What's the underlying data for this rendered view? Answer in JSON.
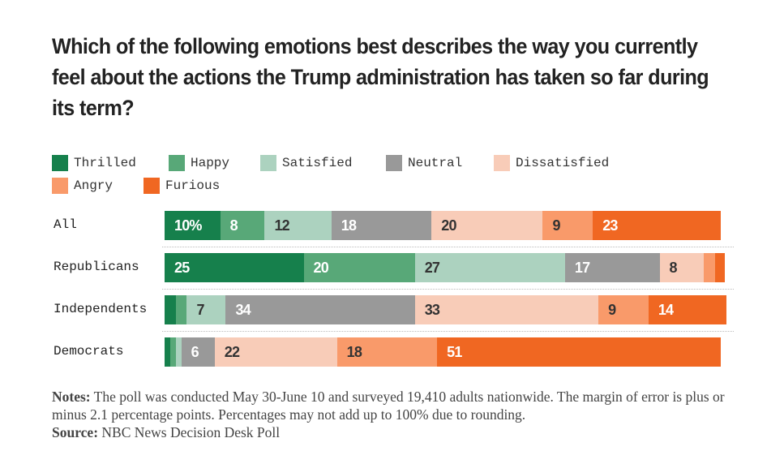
{
  "chart_data": {
    "type": "bar",
    "stacked": true,
    "orientation": "horizontal",
    "title": "Which of the following emotions best describes the way you currently feel about the actions the Trump administration has taken so far during its term?",
    "categories": [
      "All",
      "Republicans",
      "Independents",
      "Democrats"
    ],
    "series": [
      {
        "name": "Thrilled",
        "color": "#16804c",
        "text": "#fff",
        "values": [
          10,
          25,
          2,
          1
        ],
        "labels": [
          "10%",
          "25",
          "",
          ""
        ]
      },
      {
        "name": "Happy",
        "color": "#58a878",
        "text": "#fff",
        "values": [
          8,
          20,
          2,
          1
        ],
        "labels": [
          "8",
          "20",
          "",
          ""
        ]
      },
      {
        "name": "Satisfied",
        "color": "#acd2bf",
        "text": "#333",
        "values": [
          12,
          27,
          7,
          1
        ],
        "labels": [
          "12",
          "27",
          "7",
          ""
        ]
      },
      {
        "name": "Neutral",
        "color": "#999999",
        "text": "#fff",
        "values": [
          18,
          17,
          34,
          6
        ],
        "labels": [
          "18",
          "17",
          "34",
          "6"
        ]
      },
      {
        "name": "Dissatisfied",
        "color": "#f8ccb8",
        "text": "#333",
        "values": [
          20,
          8,
          33,
          22
        ],
        "labels": [
          "20",
          "8",
          "33",
          "22"
        ]
      },
      {
        "name": "Angry",
        "color": "#f99a6a",
        "text": "#333",
        "values": [
          9,
          2,
          9,
          18
        ],
        "labels": [
          "9",
          "",
          "9",
          "18"
        ]
      },
      {
        "name": "Furious",
        "color": "#f06722",
        "text": "#fff",
        "values": [
          23,
          1,
          14,
          51
        ],
        "labels": [
          "23",
          "",
          "14",
          "51"
        ]
      }
    ],
    "xlim": [
      0,
      100
    ],
    "legend": "top-left"
  },
  "notes_label": "Notes:",
  "notes_text": " The poll was conducted May 30-June 10 and surveyed 19,410 adults nationwide. The margin of error is plus or minus 2.1 percentage points. Percentages may not add up to 100% due to rounding.",
  "source_label": "Source:",
  "source_text": " NBC News Decision Desk Poll"
}
